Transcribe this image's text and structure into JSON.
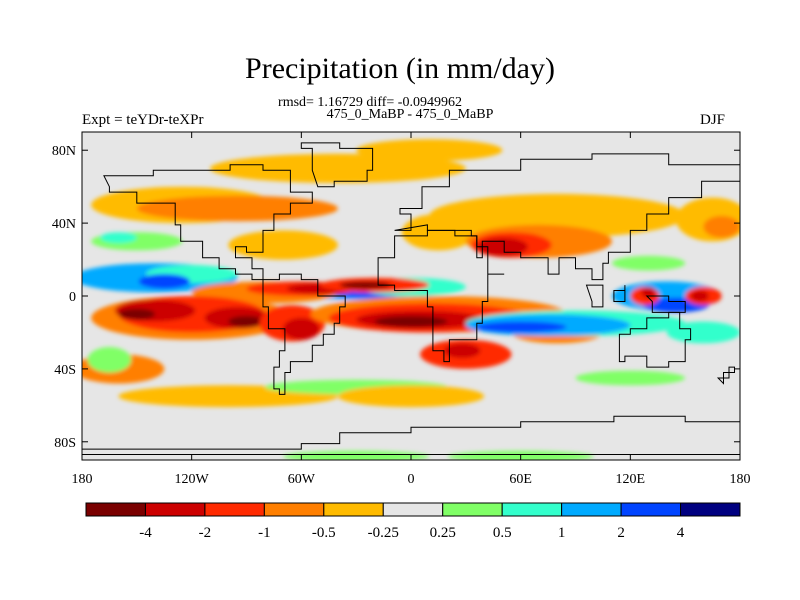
{
  "title": "Precipitation (in mm/day)",
  "stats_line": "rmsd= 1.16729 diff= -0.0949962",
  "experiment_names": "475_0_MaBP - 475_0_MaBP",
  "left_string": "Expt = teYDr-teXPr",
  "right_string": "DJF",
  "chart_data": {
    "type": "heatmap",
    "title": "Precipitation (in mm/day)",
    "units": "mm/day",
    "season": "DJF",
    "rmsd": 1.16729,
    "diff": -0.0949962,
    "x_ticks": [
      "180",
      "120W",
      "60W",
      "0",
      "60E",
      "120E",
      "180"
    ],
    "x_tick_values": [
      -180,
      -120,
      -60,
      0,
      60,
      120,
      180
    ],
    "y_ticks": [
      "80N",
      "40N",
      "0",
      "40S",
      "80S"
    ],
    "y_tick_values": [
      80,
      40,
      0,
      -40,
      -80
    ],
    "xlim": [
      -180,
      180
    ],
    "ylim": [
      -90,
      90
    ],
    "colorbar": {
      "labels": [
        "-4",
        "-2",
        "-1",
        "-0.5",
        "-0.25",
        "0.25",
        "0.5",
        "1",
        "2",
        "4"
      ],
      "levels": [
        -4,
        -2,
        -1,
        -0.5,
        -0.25,
        0.25,
        0.5,
        1,
        2,
        4
      ],
      "colors": [
        "#7a0000",
        "#cc0000",
        "#ff2a00",
        "#ff7f00",
        "#ffbb00",
        "#e6e6e6",
        "#80ff66",
        "#33ffcc",
        "#00aaff",
        "#0044ff",
        "#000080"
      ]
    },
    "field_colors": {
      "background": "#e6e6e6",
      "coastline": "#000000"
    }
  }
}
